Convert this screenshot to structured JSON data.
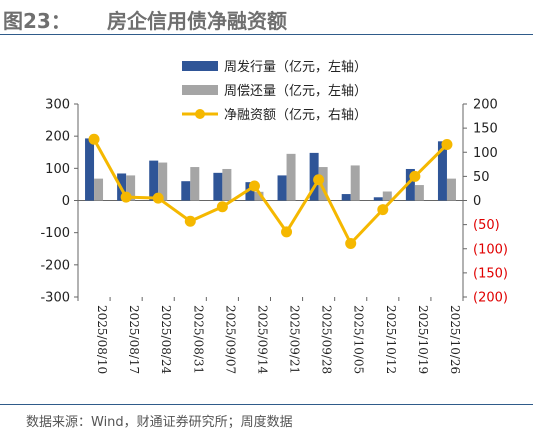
{
  "header": {
    "figure_label": "图23：",
    "title": "房企信用债净融资额"
  },
  "source": "数据来源：Wind，财通证券研究所；周度数据",
  "colors": {
    "issuance": "#2f5597",
    "repayment": "#a5a5a5",
    "net": "#f5b800",
    "negative_tick": "#e00000",
    "rule": "#2f5b8a"
  },
  "chart_data": {
    "type": "bar",
    "title": "房企信用债净融资额",
    "categories": [
      "2025/08/10",
      "2025/08/17",
      "2025/08/24",
      "2025/08/31",
      "2025/09/07",
      "2025/09/14",
      "2025/09/21",
      "2025/09/28",
      "2025/10/05",
      "2025/10/12",
      "2025/10/19",
      "2025/10/26"
    ],
    "series": [
      {
        "name": "周发行量（亿元，左轴）",
        "kind": "bar",
        "axis": "left",
        "values": [
          193,
          84,
          124,
          60,
          86,
          57,
          78,
          148,
          20,
          10,
          98,
          184
        ]
      },
      {
        "name": "周偿还量（亿元，左轴）",
        "kind": "bar",
        "axis": "left",
        "values": [
          68,
          78,
          118,
          104,
          98,
          27,
          145,
          104,
          109,
          28,
          48,
          68
        ]
      },
      {
        "name": "净融资额（亿元，右轴）",
        "kind": "line",
        "axis": "right",
        "values": [
          127,
          7,
          5,
          -43,
          -13,
          30,
          -65,
          43,
          -89,
          -19,
          50,
          116
        ]
      }
    ],
    "y_left": {
      "range": [
        -300,
        300
      ],
      "ticks": [
        "300",
        "200",
        "100",
        "0",
        "-100",
        "-200",
        "-300"
      ]
    },
    "y_right": {
      "range": [
        -200,
        200
      ],
      "ticks": [
        "200",
        "150",
        "100",
        "50",
        "0",
        "(50)",
        "(100)",
        "(150)",
        "(200)"
      ]
    },
    "legend_position": "top-right",
    "grid": false
  }
}
